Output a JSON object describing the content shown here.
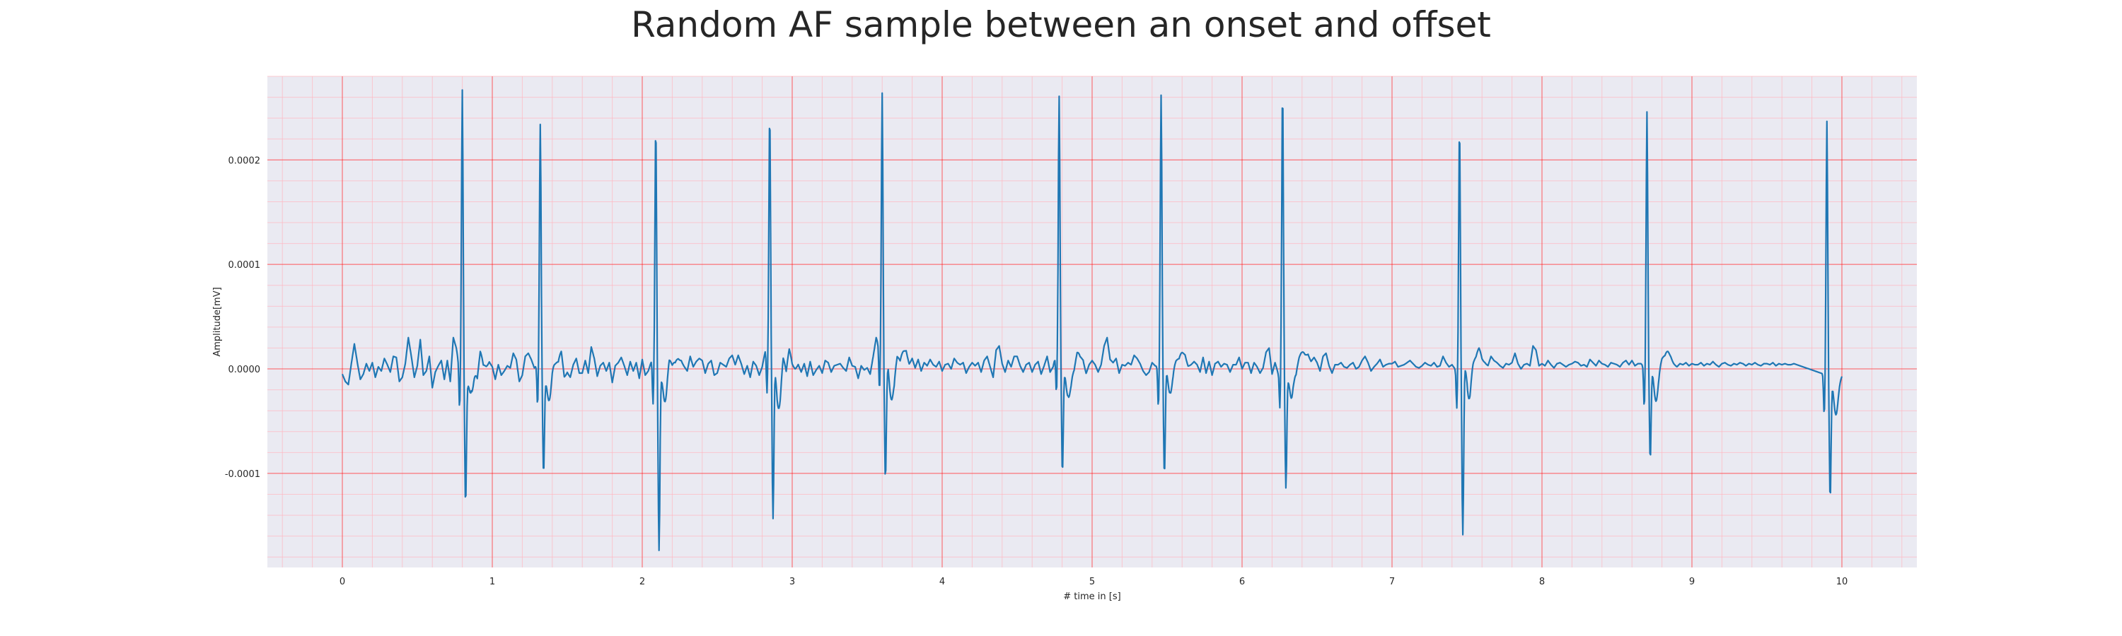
{
  "chart_data": {
    "type": "line",
    "title": "Random AF sample between an onset and offset",
    "xlabel": "# time in [s]",
    "ylabel": "Amplitude[mV]",
    "xlim": [
      -0.5,
      10.5
    ],
    "ylim": [
      -0.00019,
      0.00028
    ],
    "xticks": [
      0,
      1,
      2,
      3,
      4,
      5,
      6,
      7,
      8,
      9,
      10
    ],
    "xtick_labels": [
      "0",
      "1",
      "2",
      "3",
      "4",
      "5",
      "6",
      "7",
      "8",
      "9",
      "10"
    ],
    "yticks": [
      -0.0001,
      0.0,
      0.0001,
      0.0002
    ],
    "ytick_labels": [
      "-0.0001",
      "0.0000",
      "0.0001",
      "0.0002"
    ],
    "grid": true,
    "grid_major_color": "#ff0000",
    "grid_minor_color": "#ffb6c1",
    "background_color": "#eaeaf2",
    "series": [
      {
        "color": "#1f77b4",
        "x_start": 0.0,
        "x_step": 0.02,
        "beats": [
          {
            "t": 0.8,
            "peak": 0.000257,
            "trough": -0.000115
          },
          {
            "t": 1.32,
            "peak": 0.000229,
            "trough": -9.3e-05
          },
          {
            "t": 2.09,
            "peak": 0.000233,
            "trough": -0.00017
          },
          {
            "t": 2.85,
            "peak": 0.000233,
            "trough": -0.000152
          },
          {
            "t": 3.6,
            "peak": 0.000257,
            "trough": -9.8e-05
          },
          {
            "t": 4.78,
            "peak": 0.000245,
            "trough": -0.000103
          },
          {
            "t": 5.46,
            "peak": 0.000253,
            "trough": -0.000105
          },
          {
            "t": 6.27,
            "peak": 0.000262,
            "trough": -0.000112
          },
          {
            "t": 7.45,
            "peak": 0.000232,
            "trough": -0.000163
          },
          {
            "t": 8.7,
            "peak": 0.000242,
            "trough": -9.3e-05
          },
          {
            "t": 9.9,
            "peak": 0.000243,
            "trough": -0.000117
          }
        ],
        "baseline": [
          -5e-06,
          -1.2e-05,
          -1.5e-05,
          5e-06,
          2.4e-05,
          6e-06,
          -1e-05,
          -5e-06,
          5e-06,
          -2e-06,
          6e-06,
          -8e-06,
          2e-06,
          -2e-06,
          1e-05,
          4e-06,
          -3e-06,
          1.2e-05,
          1.1e-05,
          -1.2e-05,
          -8e-06,
          5e-06,
          3e-05,
          1.2e-05,
          -8e-06,
          3e-06,
          2.8e-05,
          -6e-06,
          -2e-06,
          1.2e-05,
          -1.8e-05,
          -3e-06,
          3e-06,
          8e-06,
          -1e-05,
          8e-06,
          -1.2e-05,
          3e-05,
          2e-05,
          1e-06,
          1e-05,
          -1.4e-05,
          -3e-06,
          1.4e-05,
          3e-06,
          -1.3e-05,
          6e-06,
          -7e-06,
          -2e-06,
          6e-06,
          2e-06,
          -1e-05,
          4e-06,
          -6e-06,
          -2e-06,
          3e-06,
          1e-06,
          1.5e-05,
          9e-06,
          -1.2e-05,
          -6e-06,
          1.2e-05,
          1.5e-05,
          9e-06,
          1e-06,
          4e-06,
          5e-06,
          -7e-06,
          -3e-06,
          5e-06,
          8e-06,
          1e-06,
          -4e-06,
          6e-06,
          -1.2e-05,
          -4e-06,
          -8e-06,
          4e-06,
          1e-05,
          -4e-06,
          -4e-06,
          8e-06,
          -4e-06,
          2.1e-05,
          1e-05,
          -7e-06,
          3e-06,
          6e-06,
          -2e-06,
          6e-06,
          -1.3e-05,
          3e-06,
          6e-06,
          1.1e-05,
          3e-06,
          -6e-06,
          7e-06,
          -2e-06,
          6e-06,
          -9e-06,
          9e-06,
          -6e-06,
          -2e-06,
          7e-06,
          5e-06,
          -4e-06,
          -2e-06,
          5e-06,
          2e-06,
          1e-05,
          -4e-06,
          -6e-06,
          2e-06,
          6e-06,
          2e-06,
          -2e-06,
          1.2e-05,
          2e-06,
          7e-06,
          1e-05,
          8e-06,
          -4e-06,
          5e-06,
          8e-06,
          -6e-06,
          -4e-06,
          6e-06,
          4e-06,
          2e-06,
          1e-05,
          1.3e-05,
          4e-06,
          1.3e-05,
          5e-06,
          -5e-06,
          3e-06,
          -8e-06,
          7e-06,
          3e-06,
          -6e-06,
          2e-06,
          1.7e-05,
          1.6e-05,
          9e-06,
          1e-05,
          -3e-06,
          -3e-06,
          1.2e-05,
          -1e-05,
          7e-06,
          -3e-06,
          -2e-06,
          4e-06,
          -3e-06,
          5e-06,
          -7e-06,
          7e-06,
          -6e-06,
          -1e-06,
          3e-06,
          -4e-06,
          8e-06,
          6e-06,
          -3e-06,
          3e-06,
          4e-06,
          5e-06,
          1e-06,
          -2e-06,
          1.1e-05,
          3e-06,
          2e-06,
          -9e-06,
          3e-06,
          -1e-06,
          1e-06,
          -5e-06,
          1.2e-05,
          3e-05,
          2e-05,
          7e-06,
          -8e-06,
          1.3e-05,
          6e-06,
          -4e-06,
          8e-06,
          -3e-06,
          6e-06,
          1.3e-05,
          4e-06,
          1e-05,
          1e-06,
          9e-06,
          -2e-06,
          6e-06,
          3e-06,
          9e-06,
          4e-06,
          2e-06,
          7e-06,
          -2e-06,
          4e-06,
          5e-06,
          0.0,
          1e-05,
          6e-06,
          4e-06,
          6e-06,
          -4e-06,
          2e-06,
          6e-06,
          3e-06,
          6e-06,
          -3e-06,
          8e-06,
          1.2e-05,
          2e-06,
          -8e-06,
          1.8e-05,
          2.2e-05,
          5e-06,
          -3e-06,
          8e-06,
          2e-06,
          1.2e-05,
          1.2e-05,
          3e-06,
          -3e-06,
          4e-06,
          6e-06,
          -3e-06,
          4e-06,
          7e-06,
          -5e-06,
          3e-06,
          1.2e-05,
          -3e-06,
          2e-06,
          1.6e-05,
          1.6e-05,
          4e-06,
          5e-06,
          9e-06,
          -4e-06,
          -5e-06,
          5e-06,
          1e-06,
          4e-06,
          -5e-06,
          4e-06,
          8e-06,
          4e-06,
          -3e-06,
          4e-06,
          2.2e-05,
          3e-05,
          9e-06,
          6e-06,
          1e-05,
          -4e-06,
          4e-06,
          3e-06,
          6e-06,
          4e-06,
          1.3e-05,
          1e-05,
          5e-06,
          -2e-06,
          -6e-06,
          -3e-06,
          6e-06,
          3e-06,
          2e-06,
          9e-06,
          4e-06,
          7e-06,
          1.2e-05,
          5e-06,
          4e-06,
          -1e-06,
          5e-06,
          9e-06,
          2e-06,
          4e-06,
          7e-06,
          4e-06,
          -3e-06,
          1.1e-05,
          -4e-06,
          7e-06,
          -6e-06,
          5e-06,
          7e-06,
          2e-06,
          5e-06,
          4e-06,
          -3e-06,
          4e-06,
          4e-06,
          1.1e-05,
          0.0,
          6e-06,
          6e-06,
          -4e-06,
          6e-06,
          2e-06,
          -4e-06,
          1e-06,
          1.6e-05,
          2e-05,
          -5e-06,
          6e-06,
          -4e-06,
          6e-06,
          5e-06,
          -5e-06,
          5e-06,
          9e-06,
          -4e-06,
          3e-06,
          4e-06,
          6e-06,
          1.2e-05,
          7e-06,
          1.1e-05,
          6e-06,
          -2e-06,
          1.2e-05,
          1.5e-05,
          3e-06,
          -4e-06,
          4e-06,
          4e-06,
          6e-06,
          2e-06,
          1e-06,
          4e-06,
          6e-06,
          0.0,
          2e-06,
          8e-06,
          1.2e-05,
          6e-06,
          -2e-06,
          2e-06,
          5e-06,
          9e-06,
          2e-06,
          4e-06,
          5e-06,
          5e-06,
          7e-06,
          2e-06,
          3e-06,
          4e-06,
          6e-06,
          8e-06,
          5e-06,
          2e-06,
          1e-06,
          3e-06,
          6e-06,
          4e-06,
          3e-06,
          6e-06,
          2e-06,
          3e-06,
          1.2e-05,
          6e-06,
          2e-06,
          4e-06,
          0.0,
          3e-06,
          -2e-06,
          1e-05,
          1.4e-05,
          1e-06,
          6e-06,
          4e-06,
          8e-06,
          2e-06,
          4e-06,
          3e-06,
          1.2e-05,
          8e-06,
          6e-06,
          3e-06,
          1e-06,
          5e-06,
          4e-06,
          6e-06,
          1.5e-05,
          5e-06,
          0.0,
          4e-06,
          5e-06,
          3e-06,
          2.2e-05,
          1.8e-05,
          3e-06,
          5e-06,
          3e-06,
          8e-06,
          4e-06,
          1e-06,
          5e-06,
          6e-06,
          4e-06,
          2e-06,
          4e-06,
          5e-06,
          7e-06,
          6e-06,
          3e-06,
          4e-06,
          2e-06,
          9e-06,
          6e-06,
          3e-06,
          8e-06,
          5e-06,
          4e-06,
          2e-06,
          6e-06,
          5e-06,
          4e-06,
          2e-06,
          6e-06,
          8e-06,
          4e-06,
          8e-06,
          3e-06,
          5e-06,
          5e-06,
          2e-06,
          4e-06,
          7e-06,
          5e-06,
          4e-06,
          3e-06,
          6e-06,
          2e-06,
          6e-06,
          7e-06,
          4e-06,
          2e-06,
          5e-06,
          4e-06,
          6e-06,
          3e-06,
          5e-06,
          4e-06,
          4e-06,
          6e-06,
          3e-06,
          5e-06,
          4e-06,
          7e-06,
          4e-06,
          2e-06,
          5e-06,
          6e-06,
          4e-06,
          3e-06,
          5e-06,
          4e-06,
          6e-06,
          5e-06,
          3e-06,
          5e-06,
          4e-06,
          6e-06,
          4e-06,
          3e-06,
          5e-06,
          5e-06,
          4e-06,
          6e-06,
          3e-06,
          5e-06,
          4e-06,
          5e-06,
          4e-06,
          4e-06,
          5e-06,
          4e-06
        ]
      }
    ]
  }
}
